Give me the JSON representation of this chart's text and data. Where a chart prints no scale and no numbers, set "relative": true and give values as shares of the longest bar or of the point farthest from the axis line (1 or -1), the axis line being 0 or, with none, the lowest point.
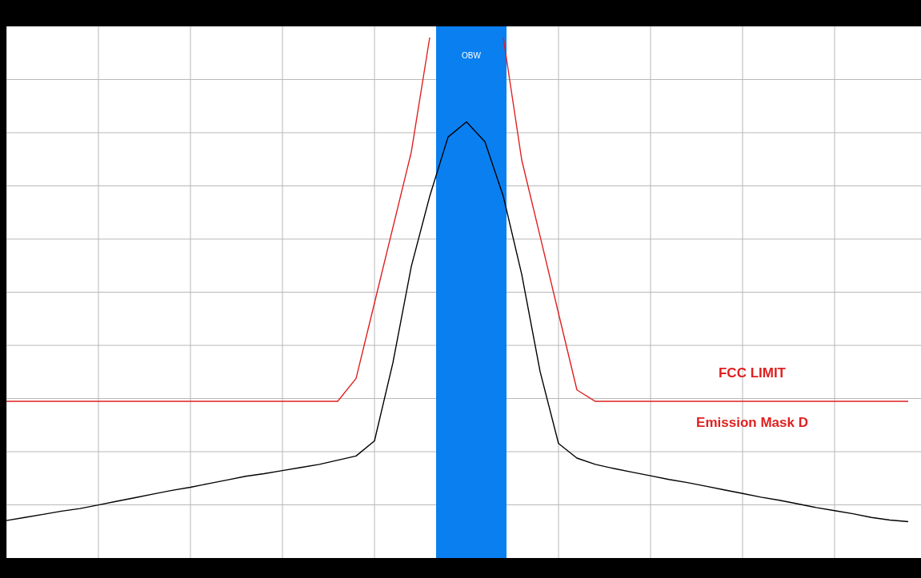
{
  "chart_data": {
    "type": "line",
    "relative": true,
    "grid": true,
    "marker": "none",
    "line_style": "solid",
    "categories": [
      null,
      null,
      null,
      null,
      null,
      null,
      null,
      null,
      null,
      null,
      null,
      null,
      null,
      null,
      null,
      null,
      null,
      null,
      null,
      null,
      null,
      null,
      null,
      null,
      null,
      null,
      null,
      null,
      null,
      null,
      null,
      null,
      null,
      null,
      null,
      null,
      null,
      null,
      null,
      null,
      null,
      null,
      null,
      null,
      null,
      null,
      null,
      null,
      null,
      null
    ],
    "series": [
      {
        "color": "#000000",
        "values": [
          0.072,
          0.078,
          0.084,
          0.09,
          0.095,
          0.102,
          0.109,
          0.116,
          0.123,
          0.13,
          0.136,
          0.143,
          0.15,
          0.157,
          0.162,
          0.168,
          0.174,
          0.18,
          0.188,
          0.196,
          0.225,
          0.375,
          0.56,
          0.695,
          0.809,
          0.838,
          0.8,
          0.695,
          0.545,
          0.358,
          0.22,
          0.192,
          0.18,
          0.172,
          0.165,
          0.158,
          0.151,
          0.145,
          0.138,
          0.131,
          0.124,
          0.117,
          0.111,
          0.104,
          0.097,
          0.091,
          0.085,
          0.078,
          0.073,
          0.07
        ]
      },
      {
        "color": "#e02020",
        "values": [
          0.301,
          0.301,
          0.301,
          0.301,
          0.301,
          0.301,
          0.301,
          0.301,
          0.301,
          0.301,
          0.301,
          0.301,
          0.301,
          0.301,
          0.301,
          0.301,
          0.301,
          0.301,
          0.301,
          0.345,
          0.49,
          0.635,
          0.78,
          1,
          null,
          null,
          null,
          1,
          0.765,
          0.618,
          0.47,
          0.323,
          0.301,
          0.301,
          0.301,
          0.301,
          0.301,
          0.301,
          0.301,
          0.301,
          0.301,
          0.301,
          0.301,
          0.301,
          0.301,
          0.301,
          0.301,
          0.301,
          0.301,
          0.301
        ]
      }
    ],
    "annotations": [
      "OBW",
      "FCC LIMIT",
      "Emission Mask D"
    ]
  }
}
